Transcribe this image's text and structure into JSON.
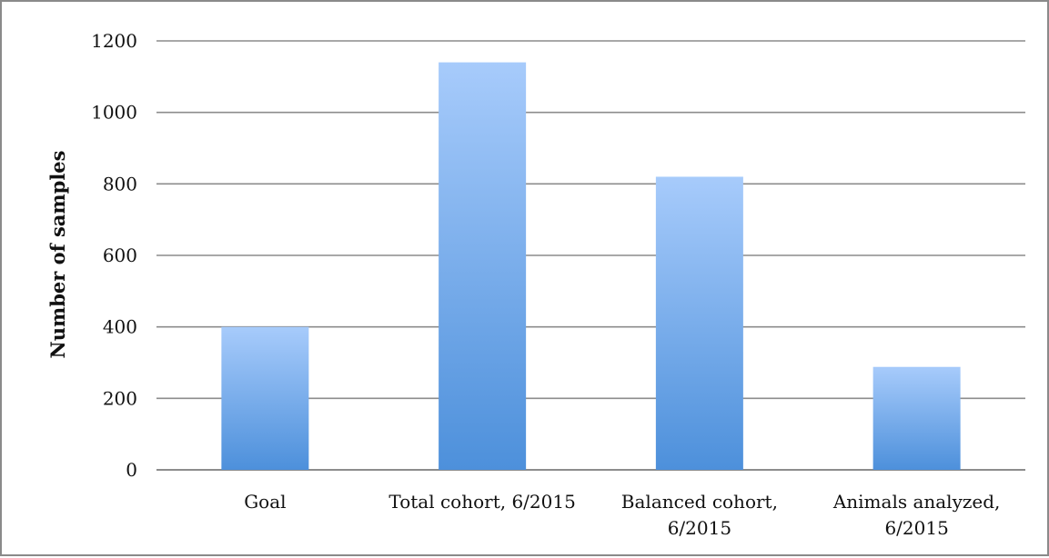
{
  "chart_data": {
    "type": "bar",
    "title": "",
    "xlabel": "",
    "ylabel": "Number of samples",
    "ylim": [
      0,
      1200
    ],
    "yticks": [
      0,
      200,
      400,
      600,
      800,
      1000,
      1200
    ],
    "grid": true,
    "categories": [
      [
        "Goal"
      ],
      [
        "Total cohort, 6/2015"
      ],
      [
        "Balanced cohort,",
        "6/2015"
      ],
      [
        "Animals analyzed,",
        "6/2015"
      ]
    ],
    "values": [
      400,
      1140,
      820,
      288
    ],
    "colors": {
      "bar_top": "#a7cbfb",
      "bar_bottom": "#4d90db",
      "grid": "#8c8c8c"
    }
  }
}
